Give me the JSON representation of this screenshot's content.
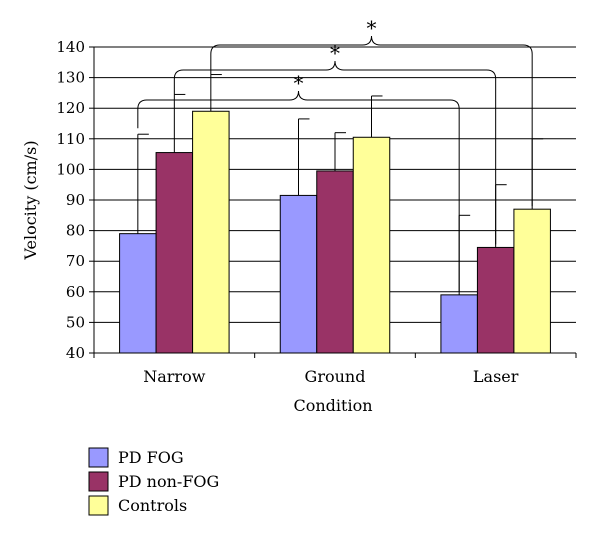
{
  "chart_data": {
    "type": "bar",
    "title": "",
    "xlabel": "Condition",
    "ylabel": "Velocity (cm/s)",
    "ylim": [
      40,
      140
    ],
    "yticks": [
      40,
      50,
      60,
      70,
      80,
      90,
      100,
      110,
      120,
      130,
      140
    ],
    "grid": true,
    "legend_position": "bottom-left",
    "categories": [
      "Narrow",
      "Ground",
      "Laser"
    ],
    "series": [
      {
        "name": "PD FOG",
        "color": "#9999ff",
        "values": [
          79,
          91.5,
          59
        ],
        "error": [
          32.5,
          25,
          26
        ]
      },
      {
        "name": "PD non-FOG",
        "color": "#993366",
        "values": [
          105.5,
          99.5,
          74.5
        ],
        "error": [
          19,
          12.5,
          20.5
        ]
      },
      {
        "name": "Controls",
        "color": "#ffff99",
        "values": [
          119,
          110.5,
          87
        ],
        "error": [
          12,
          13.5,
          23
        ]
      }
    ],
    "annotations": [
      {
        "label": "*",
        "series": "PD FOG",
        "from": "Narrow",
        "to": "Laser"
      },
      {
        "label": "*",
        "series": "PD non-FOG",
        "from": "Narrow",
        "to": "Laser"
      },
      {
        "label": "*",
        "series": "Controls",
        "from": "Narrow",
        "to": "Laser"
      }
    ]
  }
}
